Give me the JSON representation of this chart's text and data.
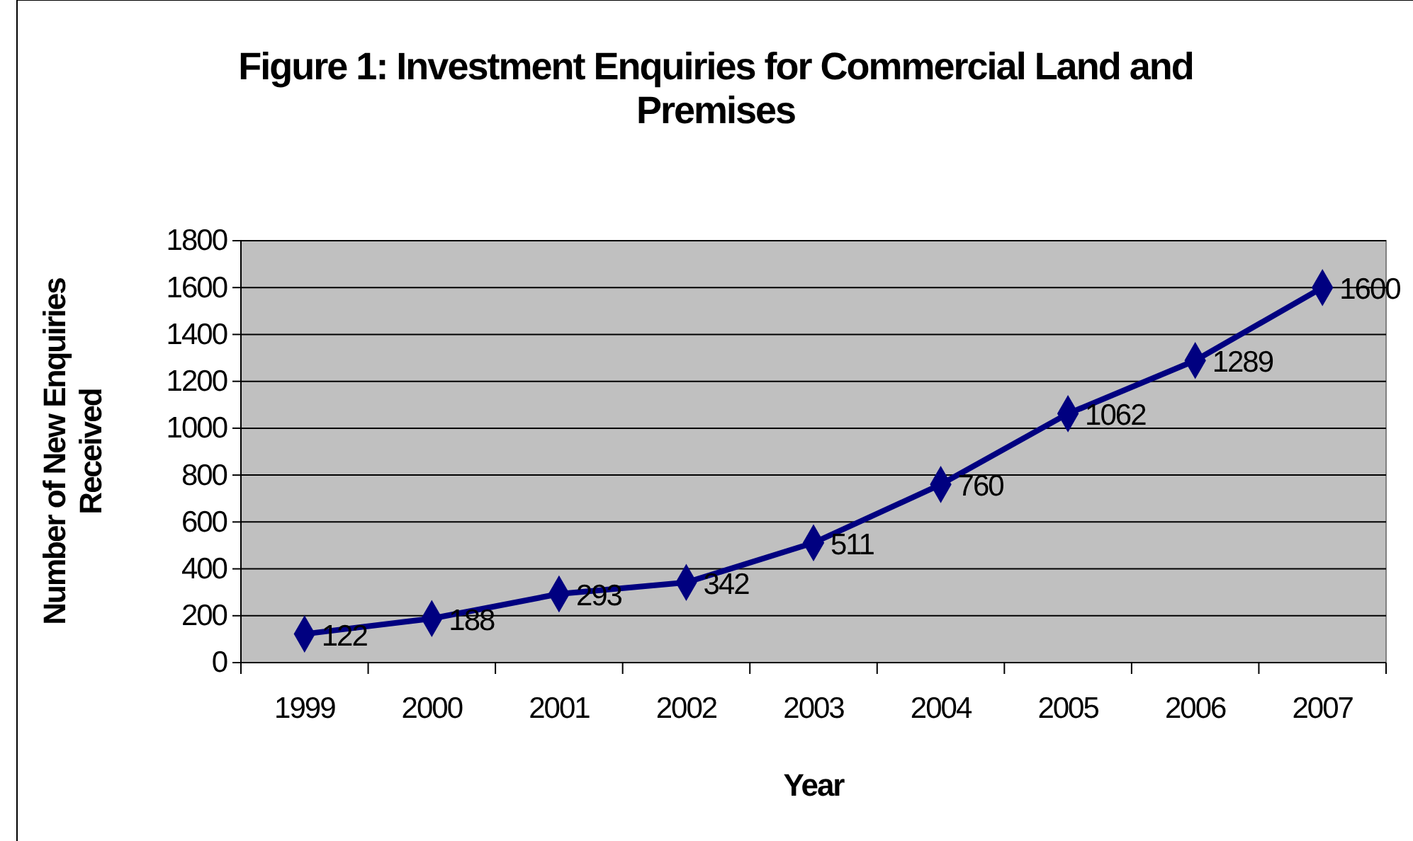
{
  "chart_data": {
    "type": "line",
    "title": "Figure 1: Investment Enquiries for Commercial Land and Premises",
    "xlabel": "Year",
    "ylabel": "Number of New Enquiries Received",
    "categories": [
      "1999",
      "2000",
      "2001",
      "2002",
      "2003",
      "2004",
      "2005",
      "2006",
      "2007"
    ],
    "series": [
      {
        "color": "#000080",
        "values": [
          122,
          188,
          293,
          342,
          511,
          760,
          1062,
          1289,
          1600
        ]
      }
    ],
    "ylim": [
      0,
      1800
    ],
    "yticks": [
      0,
      200,
      400,
      600,
      800,
      1000,
      1200,
      1400,
      1600,
      1800
    ],
    "grid": "y",
    "marker": "diamond",
    "line_style": "solid",
    "data_labels": true
  }
}
